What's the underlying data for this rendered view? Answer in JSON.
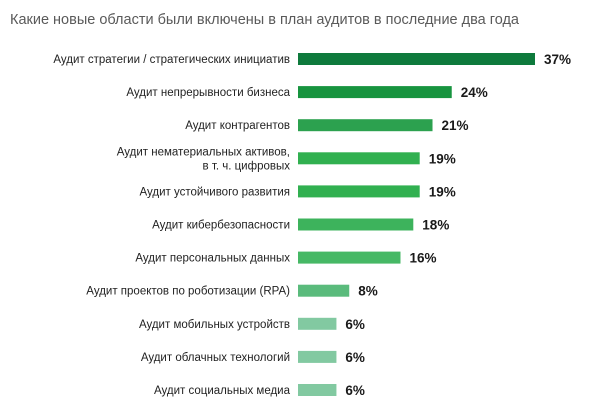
{
  "chart_data": {
    "type": "bar",
    "orientation": "horizontal",
    "title": "Какие новые области были включены в план аудитов в последние два года",
    "xlabel": "",
    "ylabel": "",
    "xlim": [
      0,
      37
    ],
    "grid": false,
    "legend": "none",
    "value_suffix": "%",
    "categories": [
      [
        "Аудит стратегии / стратегических инициатив"
      ],
      [
        "Аудит непрерывности бизнеса"
      ],
      [
        "Аудит контрагентов"
      ],
      [
        "Аудит нематериальных активов,",
        "в т. ч. цифровых"
      ],
      [
        "Аудит устойчивого развития"
      ],
      [
        "Аудит кибербезопасности"
      ],
      [
        "Аудит персональных данных"
      ],
      [
        "Аудит проектов по роботизации (RPA)"
      ],
      [
        "Аудит мобильных устройств"
      ],
      [
        "Аудит облачных технологий"
      ],
      [
        "Аудит социальных медиа"
      ]
    ],
    "values": [
      37,
      24,
      21,
      19,
      19,
      18,
      16,
      8,
      6,
      6,
      6
    ],
    "colors": [
      "#0e7a3c",
      "#17943f",
      "#2ca14f",
      "#31b050",
      "#31b050",
      "#3db35c",
      "#46b865",
      "#5abb7c",
      "#82c9a1",
      "#82c9a1",
      "#82c9a1"
    ]
  }
}
